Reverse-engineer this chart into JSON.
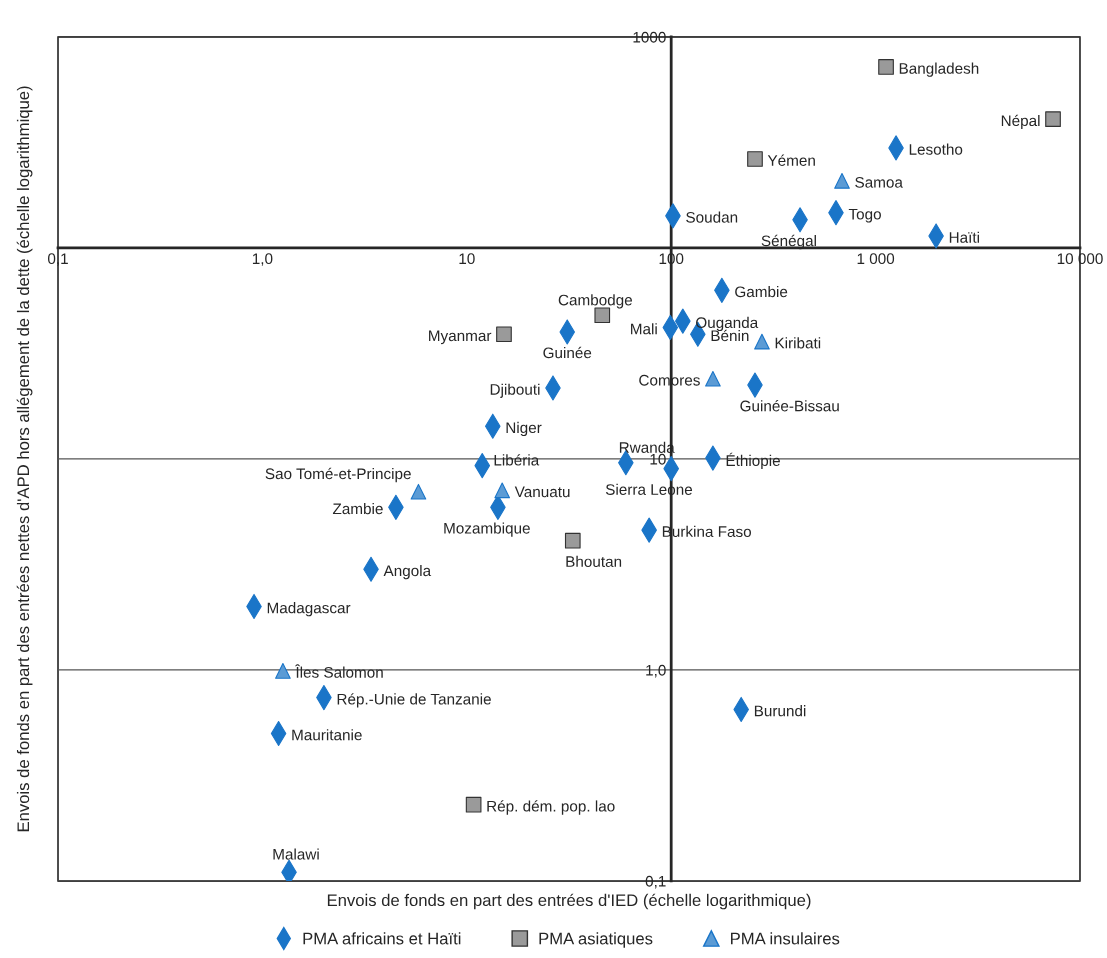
{
  "chart_data": {
    "type": "scatter",
    "xlabel": "Envois de fonds en part des entrées d'IED (échelle logarithmique)",
    "ylabel": "Envois de fonds en part des entrées nettes d'APD hors allégement de la dette (échelle logarithmique)",
    "log": "xy",
    "grid": "y",
    "legend": "bottom",
    "xlim": [
      0.1,
      10000
    ],
    "ylim": [
      0.1,
      1000
    ],
    "xticks": [
      {
        "value": 0.1,
        "label": "0,1"
      },
      {
        "value": 1,
        "label": "1,0"
      },
      10,
      100,
      {
        "value": 1000,
        "label": "1 000"
      },
      {
        "value": 10000,
        "label": "10 000"
      }
    ],
    "yticks": [
      {
        "value": 0.1,
        "label": "0,1"
      },
      {
        "value": 1,
        "label": "1,0"
      },
      10,
      {
        "value": 100,
        "label": null
      },
      1000
    ],
    "series": [
      {
        "name": "PMA africains et Haïti",
        "color": "#1a75c8",
        "marker": "diamond",
        "x": [
          1259,
          102,
          640,
          427,
          1977,
          177,
          114,
          99,
          31,
          135,
          257,
          26.4,
          13.4,
          11.9,
          60,
          100,
          160,
          4.5,
          14.2,
          78,
          3.4,
          0.91,
          2.0,
          1.2,
          220,
          1.35
        ],
        "values": [
          298,
          142,
          147,
          136,
          114,
          63,
          45,
          42,
          40,
          39,
          22.4,
          21.7,
          14.3,
          9.3,
          9.6,
          9.0,
          10.1,
          5.9,
          5.9,
          4.6,
          3.0,
          2.0,
          0.74,
          0.5,
          0.65,
          0.11
        ]
      },
      {
        "name": "PMA asiatiques",
        "color": "#9a9a9a",
        "marker": "square",
        "x": [
          1125,
          7380,
          257,
          46,
          15.2,
          33,
          10.8
        ],
        "values": [
          721,
          408,
          264,
          48,
          39,
          4.1,
          0.23
        ]
      },
      {
        "name": "PMA insulaires",
        "color": "#5b9bd5",
        "marker": "triangle",
        "x": [
          685,
          278,
          160,
          5.8,
          14.9,
          1.26
        ],
        "values": [
          208,
          36,
          24,
          7.0,
          7.1,
          0.99
        ]
      }
    ],
    "annotations": [
      {
        "text": "Bangladesh",
        "x": 1125,
        "y": 721
      },
      {
        "text": "Népal",
        "x": 7380,
        "y": 408
      },
      {
        "text": "Lesotho",
        "x": 1259,
        "y": 298
      },
      {
        "text": "Yémen",
        "x": 257,
        "y": 264
      },
      {
        "text": "Samoa",
        "x": 685,
        "y": 208
      },
      {
        "text": "Soudan",
        "x": 102,
        "y": 142
      },
      {
        "text": "Togo",
        "x": 640,
        "y": 147
      },
      {
        "text": "Sénégal",
        "x": 427,
        "y": 136
      },
      {
        "text": "Haïti",
        "x": 1977,
        "y": 114
      },
      {
        "text": "Gambie",
        "x": 177,
        "y": 63
      },
      {
        "text": "Cambodge",
        "x": 46,
        "y": 48
      },
      {
        "text": "Ouganda",
        "x": 114,
        "y": 45
      },
      {
        "text": "Mali",
        "x": 99,
        "y": 42
      },
      {
        "text": "Myanmar",
        "x": 15.2,
        "y": 39
      },
      {
        "text": "Guinée",
        "x": 31,
        "y": 40
      },
      {
        "text": "Bénin",
        "x": 135,
        "y": 39
      },
      {
        "text": "Kiribati",
        "x": 278,
        "y": 36
      },
      {
        "text": "Comores",
        "x": 160,
        "y": 24
      },
      {
        "text": "Guinée-Bissau",
        "x": 257,
        "y": 22.4
      },
      {
        "text": "Djibouti",
        "x": 26.4,
        "y": 21.7
      },
      {
        "text": "Niger",
        "x": 13.4,
        "y": 14.3
      },
      {
        "text": "Libéria",
        "x": 11.9,
        "y": 9.3
      },
      {
        "text": "Rwanda",
        "x": 60,
        "y": 9.6
      },
      {
        "text": "Sierra Leone",
        "x": 100,
        "y": 9.0
      },
      {
        "text": "Éthiopie",
        "x": 160,
        "y": 10.1
      },
      {
        "text": "Sao Tomé-et-Principe",
        "x": 5.8,
        "y": 7.0
      },
      {
        "text": "Vanuatu",
        "x": 14.9,
        "y": 7.1
      },
      {
        "text": "Zambie",
        "x": 4.5,
        "y": 5.9
      },
      {
        "text": "Mozambique",
        "x": 14.2,
        "y": 5.9
      },
      {
        "text": "Burkina Faso",
        "x": 78,
        "y": 4.6
      },
      {
        "text": "Bhoutan",
        "x": 33,
        "y": 4.1
      },
      {
        "text": "Angola",
        "x": 3.4,
        "y": 3.0
      },
      {
        "text": "Madagascar",
        "x": 0.91,
        "y": 2.0
      },
      {
        "text": "Îles Salomon",
        "x": 1.26,
        "y": 0.99
      },
      {
        "text": "Rép.-Unie de Tanzanie",
        "x": 2.0,
        "y": 0.74
      },
      {
        "text": "Mauritanie",
        "x": 1.2,
        "y": 0.5
      },
      {
        "text": "Burundi",
        "x": 220,
        "y": 0.65
      },
      {
        "text": "Rép. dém. pop. lao",
        "x": 10.8,
        "y": 0.23
      },
      {
        "text": "Malawi",
        "x": 1.35,
        "y": 0.11
      }
    ]
  }
}
